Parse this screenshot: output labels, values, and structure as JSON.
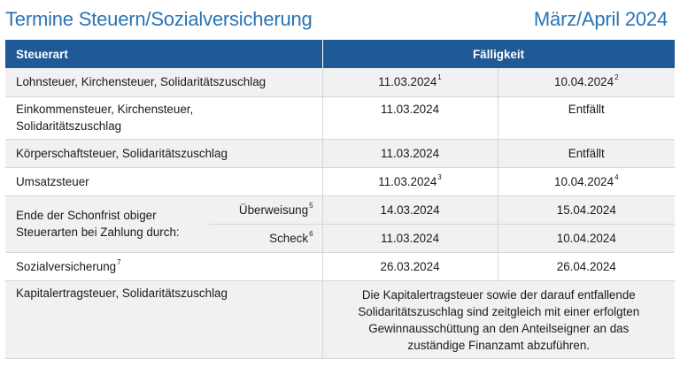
{
  "header": {
    "title": "Termine Steuern/Sozialversicherung",
    "period": "März/April 2024"
  },
  "table": {
    "col_steuerart": "Steuerart",
    "col_faelligkeit": "Fälligkeit",
    "rows": [
      {
        "label": "Lohnsteuer, Kirchensteuer, Solidaritätszuschlag",
        "date1": "11.03.2024",
        "sup1": "1",
        "date2": "10.04.2024",
        "sup2": "2"
      },
      {
        "label_line1": "Einkommensteuer, Kirchensteuer,",
        "label_line2": "Solidaritätszuschlag",
        "date1": "11.03.2024",
        "date2": "Entfällt"
      },
      {
        "label": "Körperschaftsteuer, Solidaritätszuschlag",
        "date1": "11.03.2024",
        "date2": "Entfällt"
      },
      {
        "label": "Umsatzsteuer",
        "date1": "11.03.2024",
        "sup1": "3",
        "date2": "10.04.2024",
        "sup2": "4"
      }
    ],
    "schonfrist": {
      "label_line1": "Ende der Schonfrist obiger",
      "label_line2": "Steuerarten bei Zahlung durch:",
      "ueberweisung": {
        "label": "Überweisung",
        "sup": "5",
        "date1": "14.03.2024",
        "date2": "15.04.2024"
      },
      "scheck": {
        "label": "Scheck",
        "sup": "6",
        "date1": "11.03.2024",
        "date2": "10.04.2024"
      }
    },
    "sozialversicherung": {
      "label": "Sozialversicherung",
      "sup": "7",
      "date1": "26.03.2024",
      "date2": "26.04.2024"
    },
    "kapitalertrag": {
      "label": "Kapitalertragsteuer, Solidaritätszuschlag",
      "note_line1": "Die Kapitalertragsteuer sowie der darauf entfallende",
      "note_line2": "Solidaritätszuschlag sind zeitgleich mit einer erfolgten",
      "note_line3": "Gewinnausschüttung an den Anteilseigner an das",
      "note_line4": "zuständige Finanzamt abzuführen."
    }
  }
}
